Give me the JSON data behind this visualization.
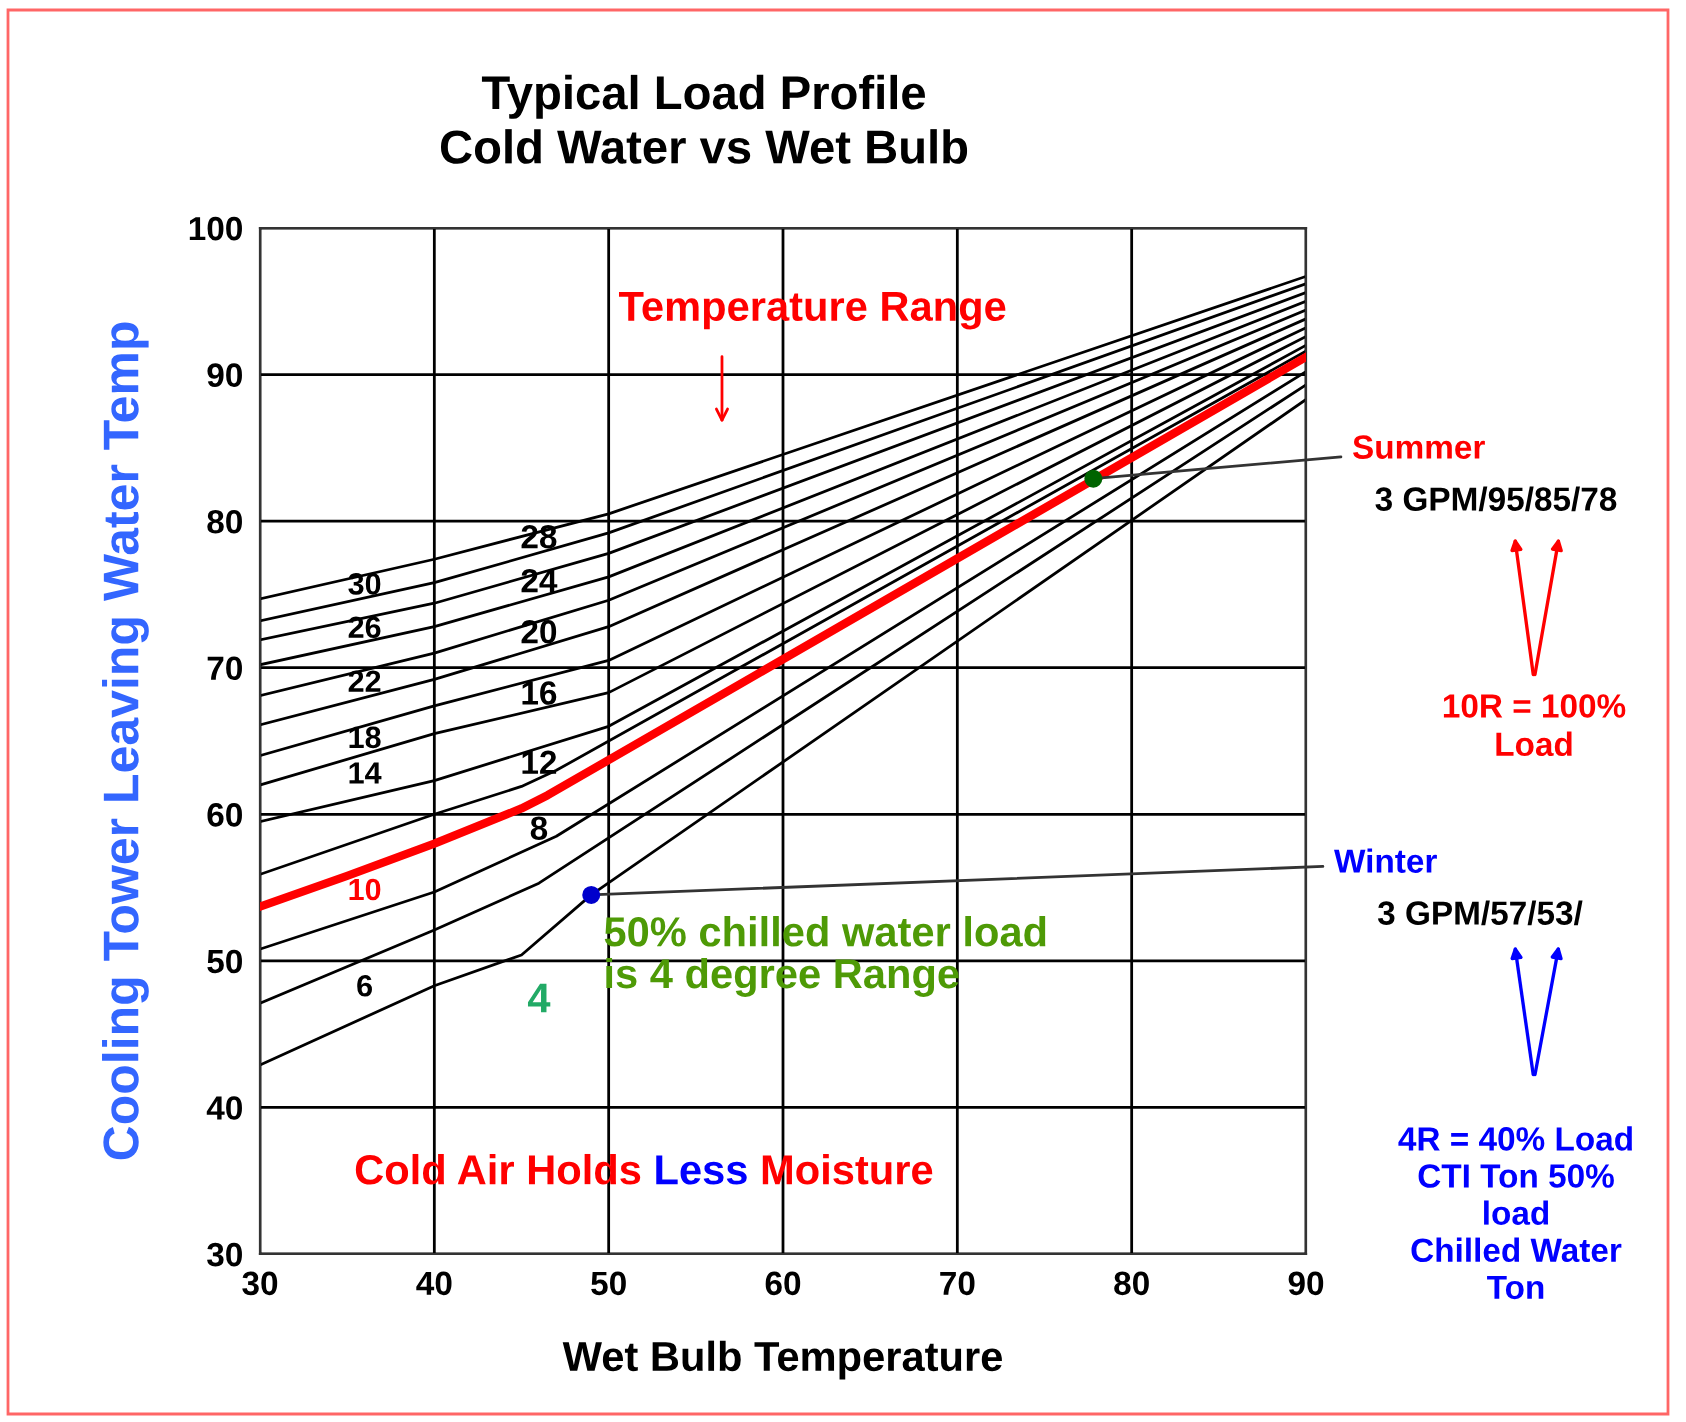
{
  "chart_data": {
    "type": "line",
    "title": "Typical Load Profile\nCold Water vs Wet Bulb",
    "xlabel": "Wet Bulb Temperature",
    "ylabel": "Cooling Tower Leaving Water Temp",
    "xlim": [
      30,
      90
    ],
    "ylim": [
      30,
      100
    ],
    "xticks": [
      30,
      40,
      50,
      60,
      70,
      80,
      90
    ],
    "yticks": [
      30,
      40,
      50,
      60,
      70,
      80,
      90,
      100
    ],
    "grid": true,
    "legend": false,
    "line_style": "solid",
    "series": [
      {
        "name": "30",
        "color": "#000000",
        "x": [
          30,
          40,
          50,
          90
        ],
        "values": [
          74.7,
          77.4,
          80.5,
          96.7
        ]
      },
      {
        "name": "28",
        "color": "#000000",
        "x": [
          30,
          40,
          50,
          90
        ],
        "values": [
          73.2,
          75.8,
          79.2,
          96.2
        ]
      },
      {
        "name": "26",
        "color": "#000000",
        "x": [
          30,
          40,
          50,
          90
        ],
        "values": [
          71.9,
          74.4,
          77.8,
          95.6
        ]
      },
      {
        "name": "24",
        "color": "#000000",
        "x": [
          30,
          40,
          50,
          90
        ],
        "values": [
          70.2,
          72.8,
          76.2,
          95.0
        ]
      },
      {
        "name": "22",
        "color": "#000000",
        "x": [
          30,
          40,
          50,
          90
        ],
        "values": [
          68.1,
          71.0,
          74.6,
          94.4
        ]
      },
      {
        "name": "20",
        "color": "#000000",
        "x": [
          30,
          40,
          50,
          90
        ],
        "values": [
          66.1,
          69.2,
          72.8,
          93.8
        ]
      },
      {
        "name": "18",
        "color": "#000000",
        "x": [
          30,
          40,
          50,
          90
        ],
        "values": [
          64.0,
          67.4,
          70.5,
          93.2
        ]
      },
      {
        "name": "16",
        "color": "#000000",
        "x": [
          30,
          40,
          50,
          90
        ],
        "values": [
          62.0,
          65.5,
          68.3,
          92.6
        ]
      },
      {
        "name": "14",
        "color": "#000000",
        "x": [
          30,
          40,
          50,
          90
        ],
        "values": [
          59.5,
          62.3,
          66.0,
          92.0
        ]
      },
      {
        "name": "12",
        "color": "#000000",
        "x": [
          30,
          40,
          45,
          47,
          90
        ],
        "values": [
          55.9,
          60.0,
          61.9,
          63.0,
          91.6
        ]
      },
      {
        "name": "10",
        "color": "#ff0000",
        "x": [
          30,
          35,
          40,
          45,
          46.5,
          90
        ],
        "values": [
          53.7,
          55.8,
          58.0,
          60.4,
          61.3,
          91.2
        ]
      },
      {
        "name": "8",
        "color": "#000000",
        "x": [
          30,
          40,
          47,
          90
        ],
        "values": [
          50.8,
          54.7,
          58.5,
          90.2
        ]
      },
      {
        "name": "6",
        "color": "#000000",
        "x": [
          30,
          40,
          46,
          90
        ],
        "values": [
          47.1,
          52.1,
          55.3,
          89.3
        ]
      },
      {
        "name": "4",
        "color": "#000000",
        "x": [
          30,
          40,
          45,
          49,
          90
        ],
        "values": [
          42.9,
          48.3,
          50.4,
          54.5,
          88.3
        ]
      },
      {
        "type": "scatter",
        "marker": "circle",
        "x": [
          77.8,
          49
        ],
        "values": [
          82.9,
          54.5
        ],
        "colors": [
          "#006400",
          "#0000cc"
        ]
      }
    ],
    "annotations": [
      "Temperature Range",
      "50% chilled water load\nis 4 degree Range",
      "Cold Air Holds Less Moisture",
      {
        "text": "Summer",
        "x": 77.8,
        "y": 82.9
      },
      "3 GPM/95/85/78",
      "10R = 100%\nLoad",
      {
        "text": "Winter",
        "x": 49,
        "y": 54.5
      },
      "3 GPM/57/53/",
      "4R = 40% Load\nCTI Ton 50%\nload\nChilled Water\nTon"
    ]
  }
}
